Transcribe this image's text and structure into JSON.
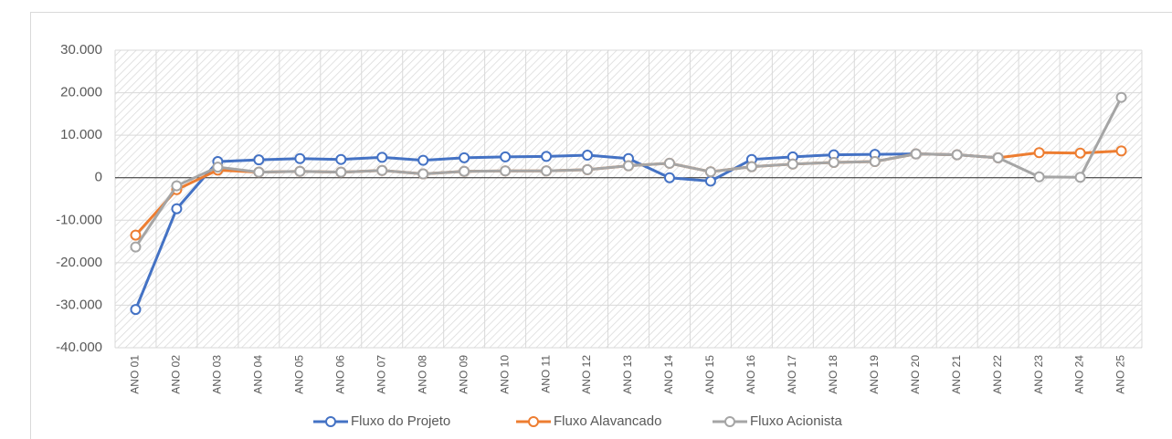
{
  "chart_data": {
    "type": "line",
    "categories": [
      "ANO 01",
      "ANO 02",
      "ANO 03",
      "ANO 04",
      "ANO 05",
      "ANO 06",
      "ANO 07",
      "ANO 08",
      "ANO 09",
      "ANO 10",
      "ANO 11",
      "ANO 12",
      "ANO 13",
      "ANO 14",
      "ANO 15",
      "ANO 16",
      "ANO 17",
      "ANO 18",
      "ANO 19",
      "ANO 20",
      "ANO 21",
      "ANO 22",
      "ANO 23",
      "ANO 24",
      "ANO 25"
    ],
    "series": [
      {
        "name": "Fluxo do Projeto",
        "color": "#4472c4",
        "values": [
          -31000,
          -7300,
          3800,
          4200,
          4500,
          4300,
          4800,
          4100,
          4700,
          4900,
          5000,
          5300,
          4500,
          0,
          -800,
          4300,
          4900,
          5400,
          5500,
          5600,
          5400,
          4700,
          null,
          null,
          null
        ]
      },
      {
        "name": "Fluxo Alavancado",
        "color": "#ed7d31",
        "values": [
          -13500,
          -2800,
          1800,
          1300,
          1500,
          1300,
          1700,
          900,
          1500,
          1600,
          1600,
          1900,
          2800,
          3400,
          1400,
          2600,
          3200,
          3600,
          3800,
          5600,
          5400,
          4700,
          5900,
          5800,
          6300
        ]
      },
      {
        "name": "Fluxo Acionista",
        "color": "#a5a5a5",
        "values": [
          -16300,
          -1900,
          2500,
          1300,
          1500,
          1300,
          1700,
          900,
          1500,
          1600,
          1600,
          1900,
          2800,
          3400,
          1400,
          2600,
          3200,
          3600,
          3800,
          5600,
          5400,
          4700,
          200,
          100,
          18900
        ]
      }
    ],
    "ylim": [
      -40000,
      30000
    ],
    "yticks": [
      {
        "value": -40000,
        "label": "-40.000"
      },
      {
        "value": -30000,
        "label": "-30.000"
      },
      {
        "value": -20000,
        "label": "-20.000"
      },
      {
        "value": -10000,
        "label": "-10.000"
      },
      0,
      {
        "value": 10000,
        "label": "10.000"
      },
      {
        "value": 20000,
        "label": "20.000"
      },
      {
        "value": 30000,
        "label": "30.000"
      }
    ],
    "grid": true,
    "legend": "bottom"
  }
}
